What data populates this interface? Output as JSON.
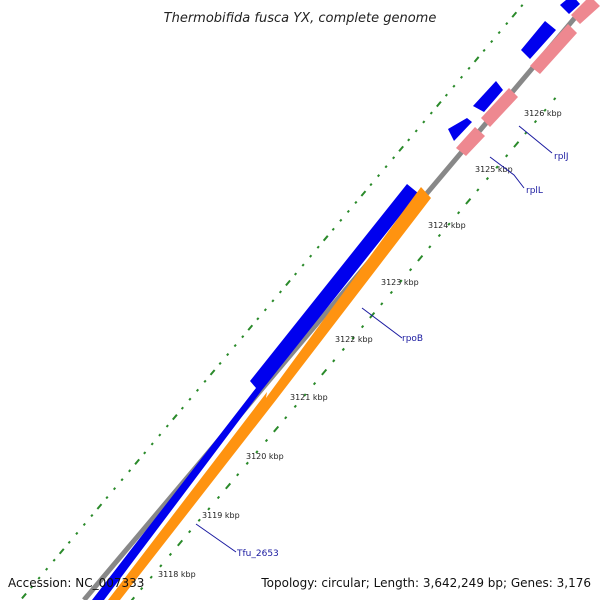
{
  "title": "Thermobifida fusca YX, complete genome",
  "accession_text": "Accession: NC_007333",
  "summary_text": "Topology: circular; Length: 3,642,249 bp; Genes: 3,176",
  "colors": {
    "backbone": "#888888",
    "forward_gene": "#0000ee",
    "reverse_cds_orange": "#ff9310",
    "reverse_cds_pink": "#ee8890",
    "tick_marks": "#2a8a2a",
    "gene_label": "#1a1aa0"
  },
  "ticks": [
    {
      "label": "3118 kbp"
    },
    {
      "label": "3119 kbp"
    },
    {
      "label": "3120 kbp"
    },
    {
      "label": "3121 kbp"
    },
    {
      "label": "3122 kbp"
    },
    {
      "label": "3123 kbp"
    },
    {
      "label": "3124 kbp"
    },
    {
      "label": "3125 kbp"
    },
    {
      "label": "3126 kbp"
    }
  ],
  "gene_labels": [
    {
      "name": "Tfu_2653"
    },
    {
      "name": "rpoB"
    },
    {
      "name": "rplL"
    },
    {
      "name": "rplJ"
    }
  ]
}
